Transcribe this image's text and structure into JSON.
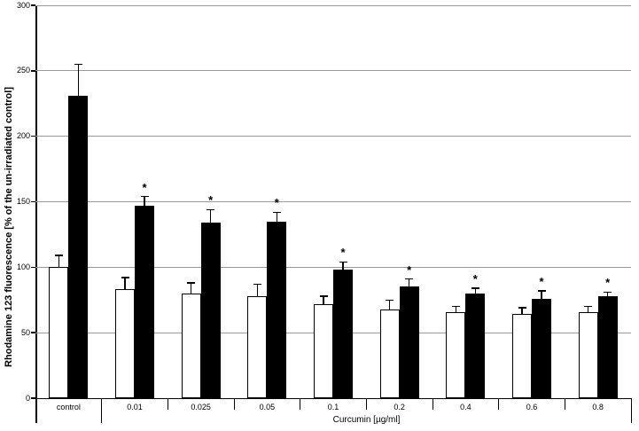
{
  "figure": {
    "background_color": "#ffffff"
  },
  "chart_data": {
    "type": "bar",
    "title": "",
    "ylabel": "Rhodamine 123 fluorescence [% of the un-irradiated control]",
    "xlabel": "Curcumin [µg/ml]",
    "categories": [
      "control",
      "0.01",
      "0.025",
      "0.05",
      "0.1",
      "0.2",
      "0.4",
      "0.6",
      "0.8"
    ],
    "ylim": [
      0,
      300
    ],
    "yticks": [
      0,
      50,
      100,
      150,
      200,
      250,
      300
    ],
    "grid": true,
    "legend_position": "none",
    "significance_marker": "*",
    "xlabel_bracket_span": [
      "0.01",
      "0.8"
    ],
    "series": [
      {
        "name": "open-bars",
        "fill": "#ffffff",
        "values": [
          100,
          83,
          80,
          78,
          72,
          68,
          66,
          64,
          66
        ],
        "errors": [
          9,
          9,
          8,
          9,
          6,
          7,
          4,
          5,
          4
        ],
        "significant": [
          false,
          false,
          false,
          false,
          false,
          false,
          false,
          false,
          false
        ]
      },
      {
        "name": "filled-bars",
        "fill": "#000000",
        "values": [
          231,
          147,
          134,
          135,
          98,
          85,
          80,
          76,
          78
        ],
        "errors": [
          24,
          7,
          10,
          7,
          6,
          6,
          4,
          6,
          3
        ],
        "significant": [
          false,
          true,
          true,
          true,
          true,
          true,
          true,
          true,
          true
        ]
      }
    ],
    "colors": {
      "grid": "#999999",
      "axis": "#000000",
      "bar_border": "#000000"
    }
  }
}
